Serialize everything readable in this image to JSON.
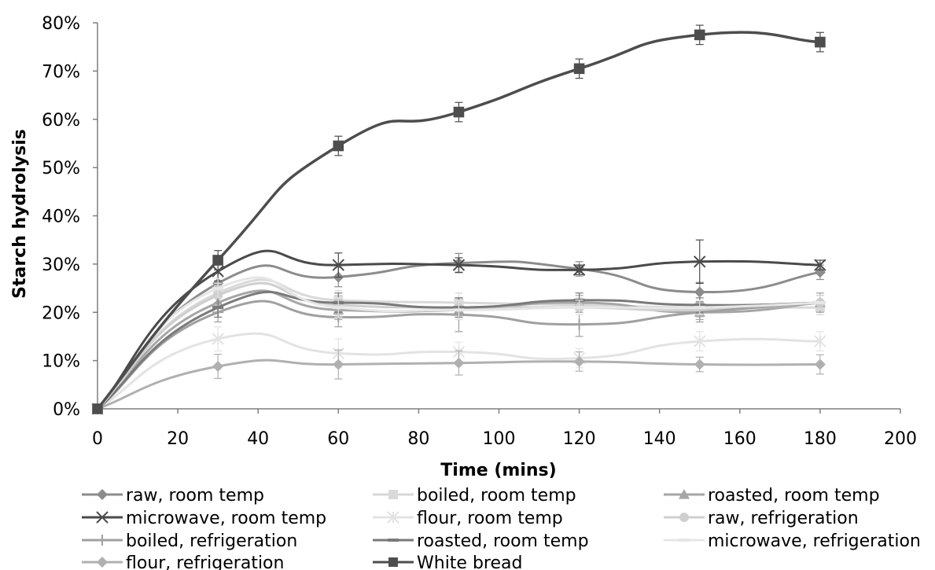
{
  "chart_data": {
    "type": "line",
    "title": "",
    "xlabel": "Time (mins)",
    "ylabel": "Starch hydrolysis",
    "xlim": [
      0,
      200
    ],
    "ylim": [
      0,
      80
    ],
    "x_ticks": [
      "0",
      "20",
      "40",
      "60",
      "80",
      "100",
      "120",
      "140",
      "160",
      "180",
      "200"
    ],
    "y_ticks": [
      "0%",
      "10%",
      "20%",
      "30%",
      "40%",
      "50%",
      "60%",
      "70%",
      "80%"
    ],
    "x": [
      0,
      30,
      60,
      90,
      120,
      150,
      180
    ],
    "grid": false,
    "legend_position": "bottom",
    "series": [
      {
        "name": "raw, room temp",
        "values": [
          0,
          26,
          27.3,
          30.2,
          29,
          24.2,
          28.3
        ],
        "errors": [
          0,
          2,
          2,
          2,
          1.5,
          2,
          1.5
        ],
        "color": "#8c8c8c",
        "marker": "diamond"
      },
      {
        "name": "boiled, room temp",
        "values": [
          0,
          24,
          22.5,
          22,
          21.5,
          21,
          21
        ],
        "errors": [
          0,
          2,
          2,
          2,
          1.5,
          1.5,
          1.5
        ],
        "color": "#d9d9d9",
        "marker": "square"
      },
      {
        "name": "roasted, room temp",
        "values": [
          0,
          22,
          20.5,
          20.5,
          22,
          20,
          22
        ],
        "errors": [
          0,
          2,
          2,
          2,
          1.5,
          1.5,
          1.5
        ],
        "color": "#a6a6a6",
        "marker": "triangle"
      },
      {
        "name": "microwave, room temp",
        "values": [
          0,
          28.5,
          29.8,
          29.8,
          28.8,
          30.5,
          29.8
        ],
        "errors": [
          0,
          2,
          2.5,
          1.5,
          1,
          4.5,
          1
        ],
        "color": "#4a4a4a",
        "marker": "x"
      },
      {
        "name": "flour, room temp",
        "values": [
          0,
          14.5,
          11.5,
          11.8,
          10.5,
          14,
          14
        ],
        "errors": [
          0,
          2.5,
          3,
          2,
          2,
          2,
          2
        ],
        "color": "#e3e3e3",
        "marker": "star"
      },
      {
        "name": "raw, refrigeration",
        "values": [
          0,
          23.5,
          21.5,
          21,
          21,
          20.5,
          22
        ],
        "errors": [
          0,
          2,
          2,
          2,
          1.5,
          1.5,
          1.5
        ],
        "color": "#cfcfcf",
        "marker": "circle"
      },
      {
        "name": "boiled, refrigeration",
        "values": [
          0,
          20,
          19,
          19.5,
          17.5,
          20,
          22
        ],
        "errors": [
          0,
          2,
          2,
          3.5,
          2.5,
          2,
          2
        ],
        "color": "#a0a0a0",
        "marker": "plus"
      },
      {
        "name": "roasted, room temp",
        "values": [
          0,
          21,
          22,
          21,
          22.5,
          21.5,
          22
        ],
        "errors": [
          0,
          2,
          2,
          2,
          1.5,
          1.5,
          1.5
        ],
        "color": "#7a7a7a",
        "marker": "dash"
      },
      {
        "name": "microwave, refrigeration",
        "values": [
          0,
          25,
          21,
          20.5,
          21,
          21,
          22
        ],
        "errors": [
          0,
          2,
          2,
          2,
          1.5,
          1.5,
          1.5
        ],
        "color": "#e6e6e6",
        "marker": "dash"
      },
      {
        "name": "flour, refrigeration",
        "values": [
          0,
          8.8,
          9.2,
          9.5,
          9.8,
          9.2,
          9.2
        ],
        "errors": [
          0,
          2.5,
          3,
          2.5,
          2,
          1.5,
          2
        ],
        "color": "#b0b0b0",
        "marker": "diamond"
      },
      {
        "name": "White bread",
        "values": [
          0,
          30.8,
          54.5,
          61.5,
          70.5,
          77.5,
          76
        ],
        "errors": [
          0,
          2,
          2,
          2,
          2,
          2,
          2
        ],
        "color": "#4d4d4d",
        "marker": "square"
      }
    ]
  }
}
